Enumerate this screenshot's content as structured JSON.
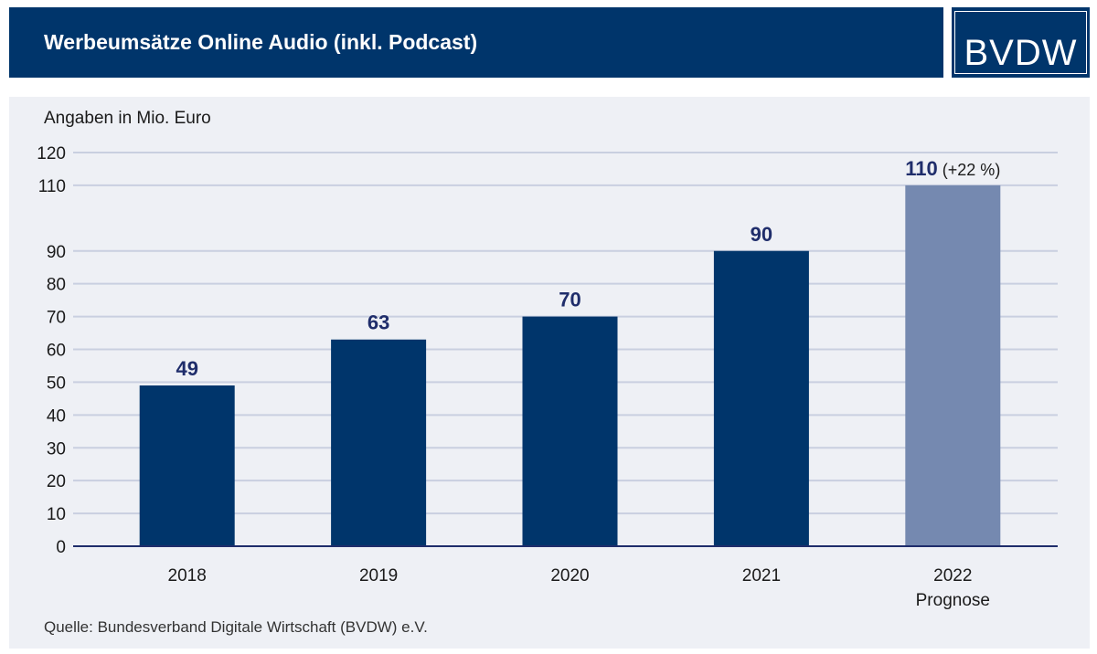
{
  "header": {
    "title": "Werbeumsätze Online Audio (inkl. Podcast)"
  },
  "logo": {
    "text": "BVDW"
  },
  "source": "Quelle: Bundesverband Digitale Wirtschaft (BVDW) e.V.",
  "colors": {
    "header_bg": "#00356b",
    "bar": "#00356b",
    "bar_forecast": "#7589b0",
    "panel_bg": "#eef0f5",
    "grid": "#c9cfe0",
    "axis": "#1f2d6b",
    "text": "#1a1a1a"
  },
  "chart_data": {
    "type": "bar",
    "ylabel": "Angaben in Mio. Euro",
    "ylim": [
      0,
      120
    ],
    "yticks": [
      0,
      10,
      20,
      30,
      40,
      50,
      60,
      70,
      80,
      90,
      110,
      120
    ],
    "grid": true,
    "categories": [
      "2018",
      "2019",
      "2020",
      "2021",
      "2022"
    ],
    "sublabels": [
      "",
      "",
      "",
      "",
      "Prognose"
    ],
    "values": [
      49,
      63,
      70,
      90,
      110
    ],
    "data_labels": [
      "49",
      "63",
      "70",
      "90",
      "110"
    ],
    "data_label_notes": [
      "",
      "",
      "",
      "",
      "(+22 %)"
    ],
    "forecast_index": 4
  }
}
